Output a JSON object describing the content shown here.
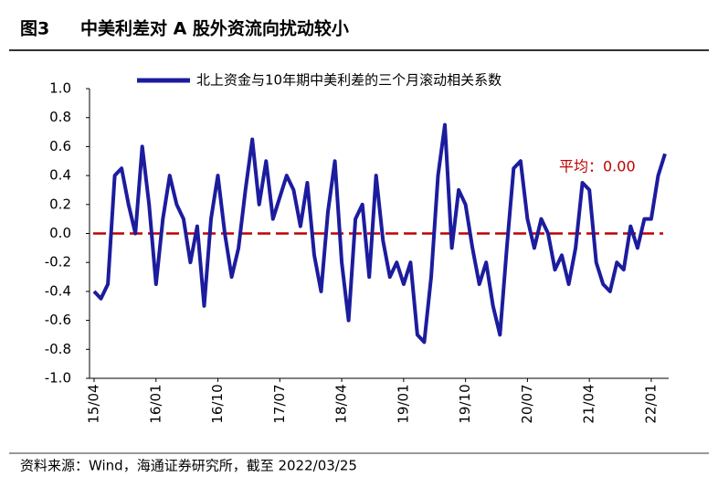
{
  "chart_data": {
    "type": "line",
    "title_prefix": "图3",
    "title": "中美利差对 A 股外资流向扰动较小",
    "source": "资料来源：Wind，海通证券研究所，截至 2022/03/25",
    "categories": [
      "15/04",
      null,
      null,
      null,
      null,
      null,
      null,
      null,
      null,
      "16/01",
      null,
      null,
      null,
      null,
      null,
      null,
      null,
      null,
      "16/10",
      null,
      null,
      null,
      null,
      null,
      null,
      null,
      null,
      "17/07",
      null,
      null,
      null,
      null,
      null,
      null,
      null,
      null,
      "18/04",
      null,
      null,
      null,
      null,
      null,
      null,
      null,
      null,
      "19/01",
      null,
      null,
      null,
      null,
      null,
      null,
      null,
      null,
      "19/10",
      null,
      null,
      null,
      null,
      null,
      null,
      null,
      null,
      "20/07",
      null,
      null,
      null,
      null,
      null,
      null,
      null,
      null,
      "21/04",
      null,
      null,
      null,
      null,
      null,
      null,
      null,
      null,
      "22/01",
      null,
      null
    ],
    "series": [
      {
        "name": "北上资金与10年期中美利差的三个月滚动相关系数",
        "color": "#1c1c9e",
        "values": [
          -0.4,
          -0.45,
          -0.35,
          0.4,
          0.45,
          0.2,
          0.0,
          0.6,
          0.2,
          -0.35,
          0.1,
          0.4,
          0.2,
          0.1,
          -0.2,
          0.05,
          -0.5,
          0.1,
          0.4,
          0.0,
          -0.3,
          -0.1,
          0.3,
          0.65,
          0.2,
          0.5,
          0.1,
          0.25,
          0.4,
          0.3,
          0.05,
          0.35,
          -0.15,
          -0.4,
          0.15,
          0.5,
          -0.2,
          -0.6,
          0.1,
          0.2,
          -0.3,
          0.4,
          -0.05,
          -0.3,
          -0.2,
          -0.35,
          -0.2,
          -0.7,
          -0.75,
          -0.3,
          0.4,
          0.75,
          -0.1,
          0.3,
          0.2,
          -0.1,
          -0.35,
          -0.2,
          -0.5,
          -0.7,
          -0.1,
          0.45,
          0.5,
          0.1,
          -0.1,
          0.1,
          0.0,
          -0.25,
          -0.15,
          -0.35,
          -0.1,
          0.35,
          0.3,
          -0.2,
          -0.35,
          -0.4,
          -0.2,
          -0.25,
          0.05,
          -0.1,
          0.1,
          0.1,
          0.4,
          0.55
        ]
      }
    ],
    "annotation": {
      "value": 0,
      "label": "平均：0.00",
      "color": "#c00000"
    },
    "ylim": [
      -1.0,
      1.0
    ],
    "yticks": [
      {
        "value": 1.0,
        "label": "1.0"
      },
      {
        "value": 0.8,
        "label": "0.8"
      },
      {
        "value": 0.6,
        "label": "0.6"
      },
      {
        "value": 0.4,
        "label": "0.4"
      },
      {
        "value": 0.2,
        "label": "0.2"
      },
      {
        "value": 0.0,
        "label": "0.0"
      },
      {
        "value": -0.2,
        "label": "-0.2"
      },
      {
        "value": -0.4,
        "label": "-0.4"
      },
      {
        "value": -0.6,
        "label": "-0.6"
      },
      {
        "value": -0.8,
        "label": "-0.8"
      },
      {
        "value": -1.0,
        "label": "-1.0"
      }
    ],
    "grid": false
  }
}
